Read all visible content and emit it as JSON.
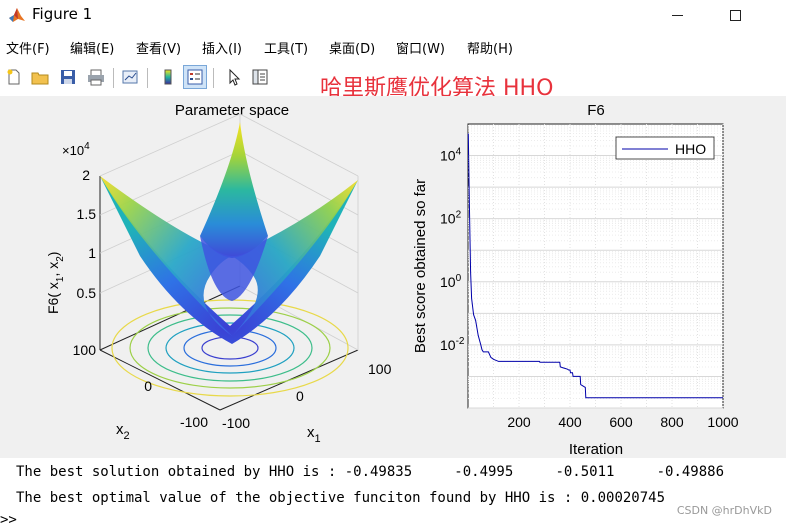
{
  "window": {
    "title": "Figure 1"
  },
  "menu": [
    "文件(F)",
    "编辑(E)",
    "查看(V)",
    "插入(I)",
    "工具(T)",
    "桌面(D)",
    "窗口(W)",
    "帮助(H)"
  ],
  "toolbar": {
    "icons": [
      "new-figure-icon",
      "open-file-icon",
      "save-icon",
      "print-icon",
      "link-plot-icon",
      "colorbar-icon",
      "legend-icon",
      "pointer-icon",
      "property-inspector-icon"
    ]
  },
  "overlay_title": "哈里斯鹰优化算法 HHO",
  "chart_data": [
    {
      "type": "surface",
      "title": "Parameter space",
      "xlabel": "x",
      "xlabel_sub": "1",
      "ylabel": "x",
      "ylabel_sub": "2",
      "zlabel": "F6( x",
      "zlabel_sub1": "1",
      "zlabel_mid": ", x",
      "zlabel_sub2": "2",
      "zlabel_end": ")",
      "zexponent": "×10",
      "zexponent_power": "4",
      "x_ticks": [
        "-100",
        "0",
        "100"
      ],
      "y_ticks": [
        "-100",
        "0",
        "100"
      ],
      "z_ticks": [
        "0.5",
        "1",
        "1.5",
        "2"
      ],
      "zlim": [
        0,
        20000
      ],
      "xlim": [
        -100,
        100
      ],
      "ylim": [
        -100,
        100
      ]
    },
    {
      "type": "line",
      "title": "F6",
      "xlabel": "Iteration",
      "ylabel": "Best score obtained so far",
      "yscale": "log",
      "xlim": [
        0,
        1000
      ],
      "ylim": [
        0.0001,
        100000
      ],
      "x_ticks": [
        "200",
        "400",
        "600",
        "800",
        "1000"
      ],
      "y_ticks": [
        {
          "base": "10",
          "exp": "4",
          "value": 10000
        },
        {
          "base": "10",
          "exp": "2",
          "value": 100
        },
        {
          "base": "10",
          "exp": "0",
          "value": 1
        },
        {
          "base": "10",
          "exp": "-2",
          "value": 0.01
        }
      ],
      "legend": "top-right",
      "grid": true,
      "series": [
        {
          "name": "HHO",
          "color": "#0000aa",
          "points": [
            [
              1,
              50000
            ],
            [
              5,
              400
            ],
            [
              10,
              2
            ],
            [
              14,
              0.3
            ],
            [
              22,
              0.09
            ],
            [
              30,
              0.06
            ],
            [
              40,
              0.02
            ],
            [
              50,
              0.01
            ],
            [
              55,
              0.007
            ],
            [
              60,
              0.006
            ],
            [
              80,
              0.006
            ],
            [
              90,
              0.004
            ],
            [
              100,
              0.0035
            ],
            [
              120,
              0.003
            ],
            [
              180,
              0.003
            ],
            [
              280,
              0.003
            ],
            [
              282,
              0.0028
            ],
            [
              360,
              0.0028
            ],
            [
              362,
              0.002
            ],
            [
              370,
              0.0019
            ],
            [
              380,
              0.0018
            ],
            [
              390,
              0.0017
            ],
            [
              395,
              0.0016
            ],
            [
              400,
              0.0016
            ],
            [
              402,
              0.0013
            ],
            [
              410,
              0.0013
            ],
            [
              412,
              0.001
            ],
            [
              440,
              0.001
            ],
            [
              442,
              0.00055
            ],
            [
              460,
              0.00045
            ],
            [
              462,
              0.00021
            ],
            [
              1000,
              0.00021
            ]
          ]
        }
      ]
    }
  ],
  "console": {
    "line1": "The best solution obtained by HHO is : -0.49835     -0.4995     -0.5011     -0.49886",
    "line2": "The best optimal value of the objective funciton found by HHO is : 0.00020745",
    "prompt": ">>",
    "watermark": "CSDN @hrDhVkD"
  }
}
